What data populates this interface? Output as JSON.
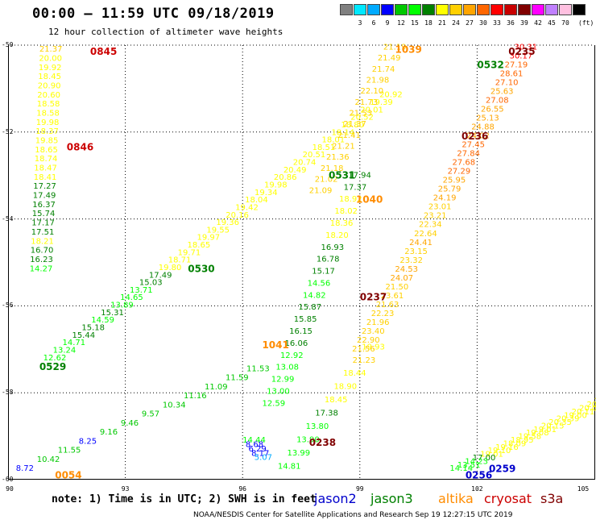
{
  "header": {
    "title": "00:00 – 11:59 UTC 09/18/2019",
    "subtitle": "12 hour collection of altimeter wave heights"
  },
  "color_scale": {
    "unit": "(ft)",
    "steps": [
      {
        "label": "",
        "color": "#808080"
      },
      {
        "label": "3",
        "color": "#00e8ff"
      },
      {
        "label": "6",
        "color": "#00aaff"
      },
      {
        "label": "9",
        "color": "#0000ff"
      },
      {
        "label": "12",
        "color": "#00c800"
      },
      {
        "label": "15",
        "color": "#00ff00"
      },
      {
        "label": "18",
        "color": "#008000"
      },
      {
        "label": "21",
        "color": "#ffff00"
      },
      {
        "label": "24",
        "color": "#ffd000"
      },
      {
        "label": "27",
        "color": "#ffa500"
      },
      {
        "label": "30",
        "color": "#ff6600"
      },
      {
        "label": "33",
        "color": "#ff0000"
      },
      {
        "label": "36",
        "color": "#c80000"
      },
      {
        "label": "39",
        "color": "#800000"
      },
      {
        "label": "42",
        "color": "#ff00ff"
      },
      {
        "label": "45",
        "color": "#c080ff"
      },
      {
        "label": "70",
        "color": "#ffc0e0"
      },
      {
        "label": "",
        "color": "#000000"
      }
    ]
  },
  "axes": {
    "y_ticks": [
      "-50",
      "-52",
      "-54",
      "-56",
      "-58",
      "-60"
    ],
    "x_ticks": [
      "90",
      "93",
      "96",
      "99",
      "102",
      "105"
    ]
  },
  "footer": {
    "note": "note: 1) Time is in UTC; 2) SWH is in feet",
    "satellites": [
      {
        "name": "jason2",
        "color": "#0000cc"
      },
      {
        "name": "jason3",
        "color": "#008000"
      },
      {
        "name": "altika",
        "color": "#ff8c00"
      },
      {
        "name": "cryosat",
        "color": "#cc0000"
      },
      {
        "name": "s3a",
        "color": "#800000"
      }
    ],
    "credit": "NOAA/NESDIS Center for Satellite Applications and Research    Sep 19 12:27:15 UTC 2019"
  },
  "map_data": {
    "lon_range": [
      90,
      105
    ],
    "lat_range": [
      -60,
      -50
    ],
    "time_labels": [
      {
        "text": "0845",
        "lon": 92.1,
        "lat": -50.15,
        "color": "#cc0000"
      },
      {
        "text": "0846",
        "lon": 91.5,
        "lat": -52.35,
        "color": "#cc0000"
      },
      {
        "text": "0530",
        "lon": 94.6,
        "lat": -55.15,
        "color": "#008000"
      },
      {
        "text": "0529",
        "lon": 90.8,
        "lat": -57.4,
        "color": "#008000"
      },
      {
        "text": "0531",
        "lon": 98.2,
        "lat": -53.0,
        "color": "#008000"
      },
      {
        "text": "0532",
        "lon": 102.0,
        "lat": -50.45,
        "color": "#008000"
      },
      {
        "text": "1039",
        "lon": 99.9,
        "lat": -50.1,
        "color": "#ff8c00"
      },
      {
        "text": "1040",
        "lon": 98.9,
        "lat": -53.55,
        "color": "#ff8c00"
      },
      {
        "text": "1041",
        "lon": 96.5,
        "lat": -56.9,
        "color": "#ff8c00"
      },
      {
        "text": "0235",
        "lon": 102.8,
        "lat": -50.15,
        "color": "#800000"
      },
      {
        "text": "0236",
        "lon": 101.6,
        "lat": -52.1,
        "color": "#800000"
      },
      {
        "text": "0237",
        "lon": 99.0,
        "lat": -55.8,
        "color": "#800000"
      },
      {
        "text": "0238",
        "lon": 97.7,
        "lat": -59.15,
        "color": "#800000"
      },
      {
        "text": "0054",
        "lon": 91.2,
        "lat": -59.9,
        "color": "#ff8c00"
      },
      {
        "text": "0256",
        "lon": 101.7,
        "lat": -59.9,
        "color": "#0000cc"
      },
      {
        "text": "0259",
        "lon": 102.3,
        "lat": -59.75,
        "color": "#0000cc"
      }
    ],
    "tracks": [
      {
        "name": "cryosat-west",
        "lon_start": 90.8,
        "lon_end": 90.55,
        "lat_start": -50.15,
        "lat_end": -55.2,
        "values": [
          "21.37",
          "20.00",
          "19.92",
          "18.45",
          "20.90",
          "20.60",
          "18.58",
          "18.58",
          "19.98",
          "18.37",
          "19.85",
          "18.65",
          "18.74",
          "18.47",
          "18.41",
          "17.27",
          "17.49",
          "16.37",
          "15.74",
          "17.17",
          "17.51",
          "18.21",
          "16.70",
          "16.23",
          "14.27"
        ]
      },
      {
        "name": "jason3-descending",
        "lon_start": 99.5,
        "lon_end": 90.9,
        "lat_start": -51.2,
        "lat_end": -57.25,
        "values": [
          "20.92",
          "19.39",
          "20.01",
          "20.52",
          "18.80",
          "18.14",
          "18.01",
          "18.51",
          "20.51",
          "20.74",
          "20.49",
          "20.86",
          "19.98",
          "19.34",
          "18.04",
          "19.42",
          "20.16",
          "19.36",
          "19.55",
          "19.97",
          "18.65",
          "19.71",
          "18.71",
          "19.80",
          "17.49",
          "15.03",
          "13.71",
          "14.65",
          "13.89",
          "15.31",
          "14.59",
          "15.18",
          "15.44",
          "14.71",
          "13.24",
          "12.62"
        ]
      },
      {
        "name": "jason3-middle",
        "lon_start": 98.7,
        "lon_end": 96.5,
        "lat_start": -53.05,
        "lat_end": -58.3,
        "values": [
          "17.94",
          "17.37",
          "18.92",
          "18.02",
          "18.36",
          "18.20",
          "16.93",
          "16.78",
          "15.17",
          "14.56",
          "14.82",
          "15.87",
          "15.85",
          "16.15",
          "16.06",
          "12.92",
          "13.08",
          "12.99",
          "13.00",
          "12.59"
        ]
      },
      {
        "name": "jason3-lower",
        "lon_start": 99.05,
        "lon_end": 96.9,
        "lat_start": -57.0,
        "lat_end": -59.75,
        "values": [
          "19.93",
          "21.23",
          "18.44",
          "18.90",
          "18.45",
          "17.38",
          "13.80",
          "13.90",
          "13.99",
          "14.81"
        ]
      },
      {
        "name": "altika-ne",
        "lon_start": 102.95,
        "lon_end": 98.8,
        "lat_start": -50.1,
        "lat_end": -57.05,
        "values": [
          "30.31",
          "30.17",
          "27.19",
          "28.61",
          "27.10",
          "25.63",
          "27.08",
          "26.55",
          "25.13",
          "24.88",
          "24.02",
          "27.45",
          "27.84",
          "27.68",
          "27.29",
          "25.95",
          "25.79",
          "24.19",
          "23.01",
          "23.21",
          "22.34",
          "22.64",
          "24.41",
          "23.15",
          "23.32",
          "24.53",
          "24.07",
          "21.50",
          "23.61",
          "21.63",
          "22.23",
          "21.96",
          "23.40",
          "22.90",
          "21.56"
        ]
      },
      {
        "name": "altika-nw",
        "lon_start": 99.6,
        "lon_end": 97.7,
        "lat_start": -50.1,
        "lat_end": -53.4,
        "values": [
          "21.19",
          "21.49",
          "21.74",
          "21.98",
          "22.10",
          "21.73",
          "21.53",
          "21.37",
          "21.41",
          "21.21",
          "21.36",
          "21.18",
          "21.02",
          "21.09"
        ]
      },
      {
        "name": "jason2",
        "lon_start": 96.1,
        "lon_end": 90.2,
        "lat_start": -57.5,
        "lat_end": -59.8,
        "values": [
          "11.53",
          "11.59",
          "11.09",
          "11.16",
          "10.34",
          "9.57",
          "9.46",
          "9.16",
          "8.25",
          "11.55",
          "10.42",
          "8.72"
        ]
      },
      {
        "name": "jason3-se",
        "lon_start": 105.0,
        "lon_end": 101.3,
        "lat_start": -58.25,
        "lat_end": -59.8,
        "values": [
          "20.27",
          "20.44",
          "20.00",
          "20.11",
          "19.00",
          "20.39",
          "20.35",
          "20.15",
          "19.01",
          "19.08",
          "19.58",
          "18.95",
          "18.09",
          "19.16",
          "19.10",
          "19.01",
          "17.00",
          "14.23",
          "13.51",
          "14.14"
        ]
      },
      {
        "name": "cyan-points",
        "lon_start": 96.0,
        "lon_end": 96.3,
        "lat_start": -59.15,
        "lat_end": -59.55,
        "values": [
          "14.44",
          "8.68",
          "6.29",
          "8.17",
          "5.07"
        ]
      }
    ]
  }
}
